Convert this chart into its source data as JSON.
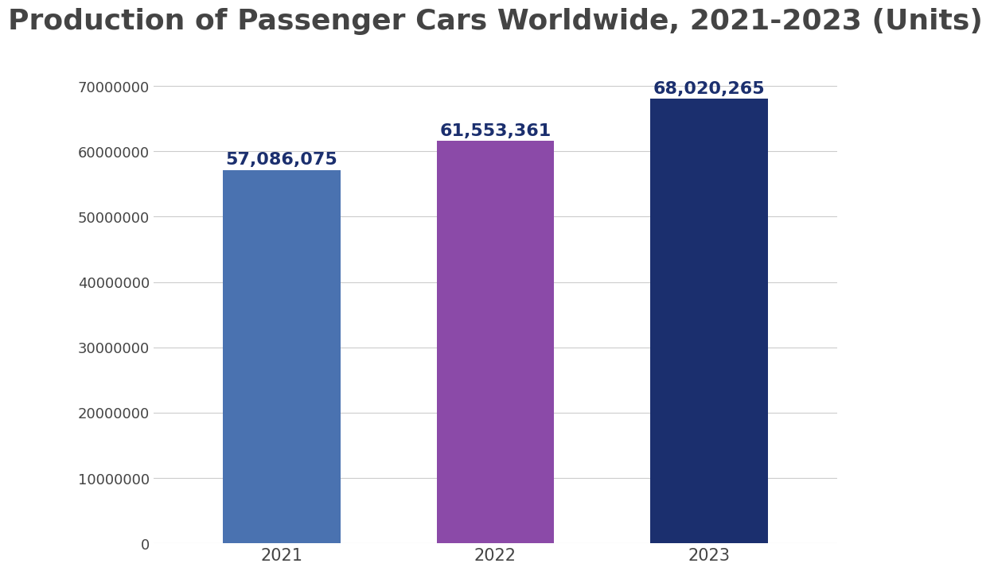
{
  "title": "Production of Passenger Cars Worldwide, 2021-2023 (Units)",
  "categories": [
    "2021",
    "2022",
    "2023"
  ],
  "values": [
    57086075,
    61553361,
    68020265
  ],
  "bar_colors": [
    "#4A72B0",
    "#8B4AA8",
    "#1B2F6E"
  ],
  "label_color": "#1B2F6E",
  "value_labels": [
    "57,086,075",
    "61,553,361",
    "68,020,265"
  ],
  "ylim": [
    0,
    75000000
  ],
  "yticks": [
    0,
    10000000,
    20000000,
    30000000,
    40000000,
    50000000,
    60000000,
    70000000
  ],
  "ytick_labels": [
    "0",
    "10000000",
    "20000000",
    "30000000",
    "40000000",
    "50000000",
    "60000000",
    "70000000"
  ],
  "title_fontsize": 26,
  "label_fontsize": 15,
  "tick_fontsize": 13,
  "value_label_fontsize": 16,
  "background_color": "#ffffff",
  "grid_color": "#cccccc",
  "bar_width": 0.55
}
